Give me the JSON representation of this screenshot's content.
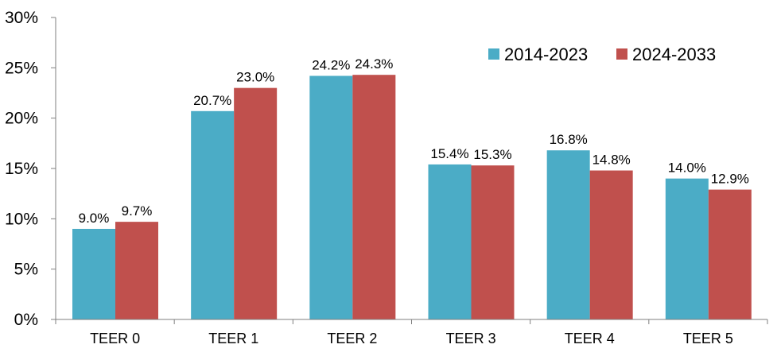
{
  "chart_data": {
    "type": "bar",
    "categories": [
      "TEER 0",
      "TEER 1",
      "TEER 2",
      "TEER 3",
      "TEER 4",
      "TEER 5"
    ],
    "series": [
      {
        "name": "2014-2023",
        "color": "#4bacc6",
        "values": [
          9.0,
          20.7,
          24.2,
          15.4,
          16.8,
          14.0
        ],
        "labels": [
          "9.0%",
          "20.7%",
          "24.2%",
          "15.4%",
          "16.8%",
          "14.0%"
        ]
      },
      {
        "name": "2024-2033",
        "color": "#c0504d",
        "values": [
          9.7,
          23.0,
          24.3,
          15.3,
          14.8,
          12.9
        ],
        "labels": [
          "9.7%",
          "23.0%",
          "24.3%",
          "15.3%",
          "14.8%",
          "12.9%"
        ]
      }
    ],
    "yticks": [
      "0%",
      "5%",
      "10%",
      "15%",
      "20%",
      "25%",
      "30%"
    ],
    "ylim": [
      0,
      30
    ],
    "title": "",
    "xlabel": "",
    "ylabel": "",
    "legend_position": "top-right",
    "grid": false
  }
}
